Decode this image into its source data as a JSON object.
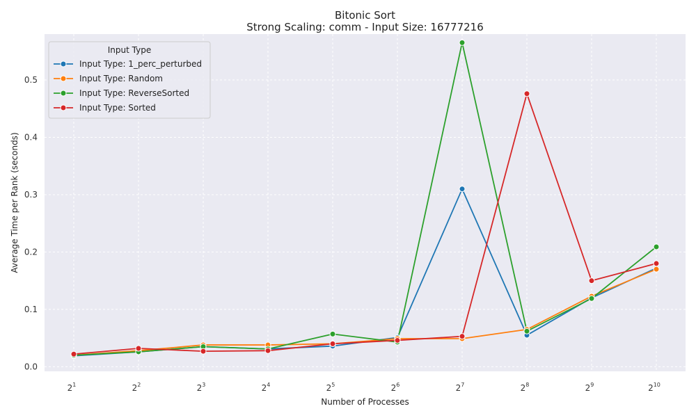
{
  "chart_data": {
    "type": "line",
    "title": "Bitonic Sort",
    "subtitle": "Strong Scaling: comm - Input Size: 16777216",
    "xlabel": "Number of Processes",
    "ylabel": "Average Time per Rank (seconds)",
    "x_scale": "log2",
    "x": [
      2,
      4,
      8,
      16,
      32,
      64,
      128,
      256,
      512,
      1024
    ],
    "x_tick_labels": [
      {
        "base": "2",
        "exp": "1"
      },
      {
        "base": "2",
        "exp": "2"
      },
      {
        "base": "2",
        "exp": "3"
      },
      {
        "base": "2",
        "exp": "4"
      },
      {
        "base": "2",
        "exp": "5"
      },
      {
        "base": "2",
        "exp": "6"
      },
      {
        "base": "2",
        "exp": "7"
      },
      {
        "base": "2",
        "exp": "8"
      },
      {
        "base": "2",
        "exp": "9"
      },
      {
        "base": "2",
        "exp": "10"
      }
    ],
    "ylim": [
      -0.008,
      0.58
    ],
    "y_ticks": [
      0.0,
      0.1,
      0.2,
      0.3,
      0.4,
      0.5
    ],
    "y_tick_labels": [
      "0.0",
      "0.1",
      "0.2",
      "0.3",
      "0.4",
      "0.5"
    ],
    "grid": true,
    "legend": {
      "title": "Input Type",
      "placement": "top-left"
    },
    "series": [
      {
        "name": "Input Type: 1_perc_perturbed",
        "color": "#1f77b4",
        "values": [
          0.019,
          0.026,
          0.035,
          0.031,
          0.036,
          0.051,
          0.31,
          0.055,
          0.12,
          0.172
        ]
      },
      {
        "name": "Input Type: Random",
        "color": "#ff7f0e",
        "values": [
          0.02,
          0.028,
          0.038,
          0.038,
          0.04,
          0.049,
          0.049,
          0.065,
          0.123,
          0.17
        ]
      },
      {
        "name": "Input Type: ReverseSorted",
        "color": "#2ca02c",
        "values": [
          0.02,
          0.026,
          0.035,
          0.031,
          0.057,
          0.043,
          0.565,
          0.062,
          0.119,
          0.209
        ]
      },
      {
        "name": "Input Type: Sorted",
        "color": "#d62728",
        "values": [
          0.022,
          0.032,
          0.027,
          0.028,
          0.04,
          0.046,
          0.053,
          0.476,
          0.15,
          0.18
        ]
      }
    ]
  }
}
